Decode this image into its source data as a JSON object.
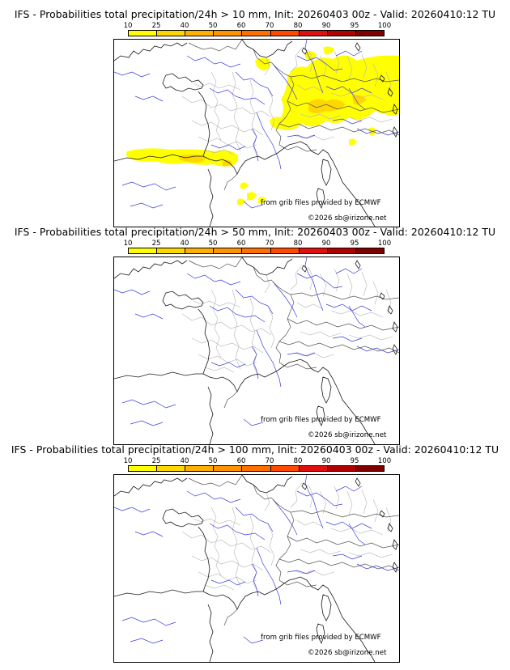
{
  "colorbar": {
    "ticks": [
      "10",
      "25",
      "40",
      "50",
      "60",
      "70",
      "80",
      "90",
      "95",
      "100"
    ],
    "colors": [
      "#ffff00",
      "#ffd700",
      "#ffb000",
      "#ff9400",
      "#ff7000",
      "#ff4a00",
      "#e01010",
      "#b00000",
      "#800000"
    ]
  },
  "panels": [
    {
      "title": "IFS - Probabilities total precipitation/24h > 10 mm, Init: 20260403 00z - Valid: 20260410:12 TU",
      "credit_source": "from grib files provided by ECMWF",
      "credit_copyright": "©2026 sb@irizone.net",
      "has_precip": true
    },
    {
      "title": "IFS - Probabilities total precipitation/24h > 50 mm, Init: 20260403 00z - Valid: 20260410:12 TU",
      "credit_source": "from grib files provided by ECMWF",
      "credit_copyright": "©2026 sb@irizone.net",
      "has_precip": false
    },
    {
      "title": "IFS - Probabilities total precipitation/24h > 100 mm, Init: 20260403 00z - Valid: 20260410:12 TU",
      "credit_source": "from grib files provided by ECMWF",
      "credit_copyright": "©2026 sb@irizone.net",
      "has_precip": false
    }
  ]
}
